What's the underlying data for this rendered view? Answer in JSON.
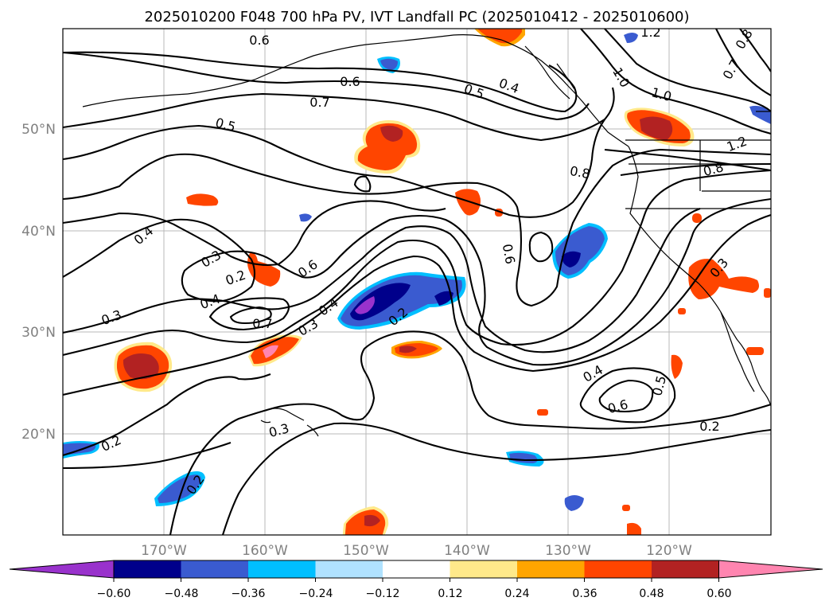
{
  "map": {
    "title": "2025010200 F048 700 hPa PV, IVT Landfall PC (2025010412 - 2025010600)",
    "lat_labels": [
      "50°N",
      "40°N",
      "30°N",
      "20°N"
    ],
    "lon_labels": [
      "170°W",
      "160°W",
      "150°W",
      "140°W",
      "130°W",
      "120°W"
    ],
    "contour_labels": [
      "0.6",
      "0.6",
      "0.7",
      "0.5",
      "0.4",
      "0.5",
      "0.4",
      "0.3",
      "0.2",
      "0.6",
      "0.4",
      "0.3",
      "0.7",
      "0.3",
      "0.4",
      "0.2",
      "0.6",
      "0.8",
      "1.0",
      "1.0",
      "1.2",
      "0.8",
      "0.7",
      "1.2",
      "0.8",
      "0.4",
      "0.6",
      "0.5",
      "0.2",
      "0.3",
      "0.2",
      "0.2",
      "0.3"
    ]
  },
  "colorbar": {
    "ticks": [
      "−0.60",
      "−0.48",
      "−0.36",
      "−0.24",
      "−0.12",
      "0.12",
      "0.24",
      "0.36",
      "0.48",
      "0.60"
    ],
    "colors": [
      "#9932cc",
      "#00008b",
      "#3a5bd0",
      "#00bfff",
      "#b0e2ff",
      "#ffffff",
      "#ffe98a",
      "#ffa500",
      "#ff4500",
      "#b22222",
      "#ff85b0"
    ]
  }
}
